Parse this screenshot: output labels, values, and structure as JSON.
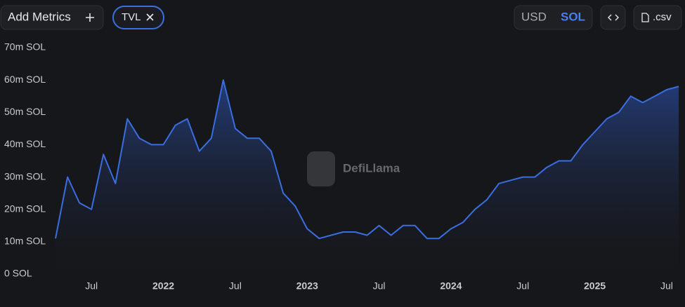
{
  "toolbar": {
    "add_metrics": "Add Metrics",
    "metric_chip": "TVL",
    "currency_options": [
      "USD",
      "SOL"
    ],
    "active_currency": 1,
    "csv": ".csv"
  },
  "watermark": "DefiLlama",
  "chart_data": {
    "type": "area",
    "categories": [
      null,
      null,
      null,
      "Jul",
      null,
      null,
      null,
      null,
      null,
      "2022",
      null,
      null,
      null,
      null,
      null,
      "Jul",
      null,
      null,
      null,
      null,
      null,
      "2023",
      null,
      null,
      null,
      null,
      null,
      "Jul",
      null,
      null,
      null,
      null,
      null,
      "2024",
      null,
      null,
      null,
      null,
      null,
      "Jul",
      null,
      null,
      null,
      null,
      null,
      "2025",
      null,
      null,
      null,
      null,
      null,
      "Jul",
      null
    ],
    "values": [
      11000000,
      30000000,
      22000000,
      20000000,
      37000000,
      28000000,
      48000000,
      42000000,
      40000000,
      40000000,
      46000000,
      48000000,
      38000000,
      42000000,
      60000000,
      45000000,
      42000000,
      42000000,
      38000000,
      25000000,
      21000000,
      14000000,
      11000000,
      12000000,
      13000000,
      13000000,
      12000000,
      15000000,
      12000000,
      15000000,
      15000000,
      11000000,
      11000000,
      14000000,
      16000000,
      20000000,
      23000000,
      28000000,
      29000000,
      30000000,
      30000000,
      33000000,
      35000000,
      35000000,
      40000000,
      44000000,
      48000000,
      50000000,
      55000000,
      53000000,
      55000000,
      57000000,
      58000000
    ],
    "color": "#3a6ee0",
    "ylim": [
      0,
      70000000
    ],
    "yticks": [
      {
        "value": 0,
        "label": "0 SOL"
      },
      {
        "value": 10000000,
        "label": "10m SOL"
      },
      {
        "value": 20000000,
        "label": "20m SOL"
      },
      {
        "value": 30000000,
        "label": "30m SOL"
      },
      {
        "value": 40000000,
        "label": "40m SOL"
      },
      {
        "value": 50000000,
        "label": "50m SOL"
      },
      {
        "value": 60000000,
        "label": "60m SOL"
      },
      {
        "value": 70000000,
        "label": "70m SOL"
      }
    ],
    "grid": false
  }
}
